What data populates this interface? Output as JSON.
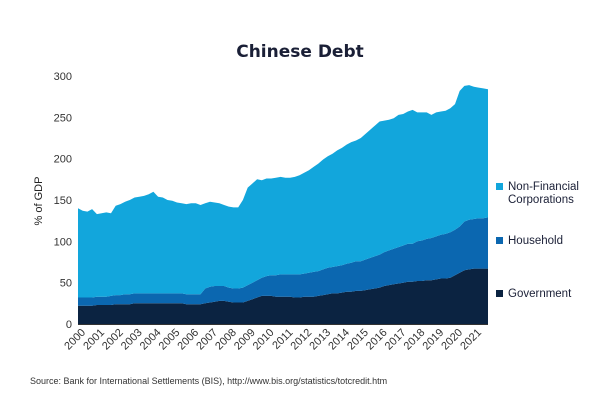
{
  "chart_data": {
    "type": "area",
    "stacked": true,
    "title": "Chinese Debt",
    "ylabel": "% of GDP",
    "xlabel": "",
    "ylim": [
      0,
      300
    ],
    "yticks": [
      0,
      50,
      100,
      150,
      200,
      250,
      300
    ],
    "xlim": [
      2000,
      2021.75
    ],
    "xticks": [
      2000,
      2001,
      2002,
      2003,
      2004,
      2005,
      2006,
      2007,
      2008,
      2009,
      2010,
      2011,
      2012,
      2013,
      2014,
      2015,
      2016,
      2017,
      2018,
      2019,
      2020,
      2021
    ],
    "grid": false,
    "legend_position": "right",
    "source": "Source: Bank for International Settlements (BIS), http://www.bis.org/statistics/totcredit.htm",
    "x": [
      2000.0,
      2000.25,
      2000.5,
      2000.75,
      2001.0,
      2001.25,
      2001.5,
      2001.75,
      2002.0,
      2002.25,
      2002.5,
      2002.75,
      2003.0,
      2003.25,
      2003.5,
      2003.75,
      2004.0,
      2004.25,
      2004.5,
      2004.75,
      2005.0,
      2005.25,
      2005.5,
      2005.75,
      2006.0,
      2006.25,
      2006.5,
      2006.75,
      2007.0,
      2007.25,
      2007.5,
      2007.75,
      2008.0,
      2008.25,
      2008.5,
      2008.75,
      2009.0,
      2009.25,
      2009.5,
      2009.75,
      2010.0,
      2010.25,
      2010.5,
      2010.75,
      2011.0,
      2011.25,
      2011.5,
      2011.75,
      2012.0,
      2012.25,
      2012.5,
      2012.75,
      2013.0,
      2013.25,
      2013.5,
      2013.75,
      2014.0,
      2014.25,
      2014.5,
      2014.75,
      2015.0,
      2015.25,
      2015.5,
      2015.75,
      2016.0,
      2016.25,
      2016.5,
      2016.75,
      2017.0,
      2017.25,
      2017.5,
      2017.75,
      2018.0,
      2018.25,
      2018.5,
      2018.75,
      2019.0,
      2019.25,
      2019.5,
      2019.75,
      2020.0,
      2020.25,
      2020.5,
      2020.75,
      2021.0,
      2021.25,
      2021.5,
      2021.75
    ],
    "series": [
      {
        "name": "Government",
        "color": "#0b2341",
        "values": [
          22,
          22,
          22,
          22,
          23,
          23,
          23,
          23,
          24,
          24,
          24,
          24,
          25,
          25,
          25,
          25,
          25,
          25,
          25,
          25,
          25,
          25,
          25,
          24,
          24,
          24,
          24,
          25,
          26,
          27,
          28,
          28,
          27,
          26,
          26,
          26,
          28,
          30,
          32,
          34,
          34,
          34,
          33,
          33,
          33,
          33,
          32,
          32,
          33,
          33,
          33,
          34,
          35,
          36,
          37,
          37,
          38,
          39,
          39,
          40,
          40,
          41,
          42,
          43,
          44,
          46,
          47,
          48,
          49,
          50,
          51,
          51,
          52,
          52,
          53,
          53,
          54,
          55,
          55,
          56,
          59,
          62,
          65,
          66,
          67,
          67,
          67,
          67
        ]
      },
      {
        "name": "Household",
        "color": "#0b67b0",
        "values": [
          10,
          10,
          10,
          10,
          10,
          10,
          10,
          11,
          11,
          11,
          12,
          12,
          12,
          12,
          12,
          12,
          12,
          12,
          12,
          12,
          12,
          12,
          12,
          12,
          12,
          12,
          12,
          18,
          19,
          19,
          18,
          18,
          17,
          17,
          17,
          18,
          19,
          20,
          21,
          22,
          24,
          25,
          26,
          27,
          27,
          27,
          28,
          28,
          28,
          29,
          30,
          30,
          31,
          32,
          32,
          33,
          33,
          34,
          35,
          36,
          36,
          37,
          38,
          39,
          40,
          41,
          42,
          43,
          44,
          45,
          46,
          46,
          48,
          49,
          50,
          51,
          52,
          53,
          54,
          55,
          55,
          56,
          59,
          60,
          60,
          61,
          61,
          62
        ]
      },
      {
        "name": "Non-Financial Corporations",
        "color": "#12a6dc",
        "values": [
          108,
          105,
          104,
          107,
          100,
          101,
          102,
          100,
          108,
          110,
          112,
          114,
          116,
          117,
          118,
          120,
          123,
          117,
          116,
          113,
          112,
          110,
          109,
          109,
          110,
          110,
          108,
          103,
          103,
          101,
          100,
          98,
          98,
          98,
          98,
          106,
          118,
          120,
          122,
          118,
          118,
          117,
          118,
          118,
          117,
          117,
          118,
          120,
          122,
          124,
          127,
          130,
          133,
          135,
          137,
          140,
          142,
          144,
          146,
          146,
          149,
          152,
          155,
          158,
          161,
          159,
          158,
          158,
          160,
          159,
          160,
          162,
          156,
          155,
          153,
          149,
          150,
          149,
          149,
          150,
          152,
          164,
          164,
          163,
          160,
          158,
          157,
          155
        ]
      }
    ]
  }
}
